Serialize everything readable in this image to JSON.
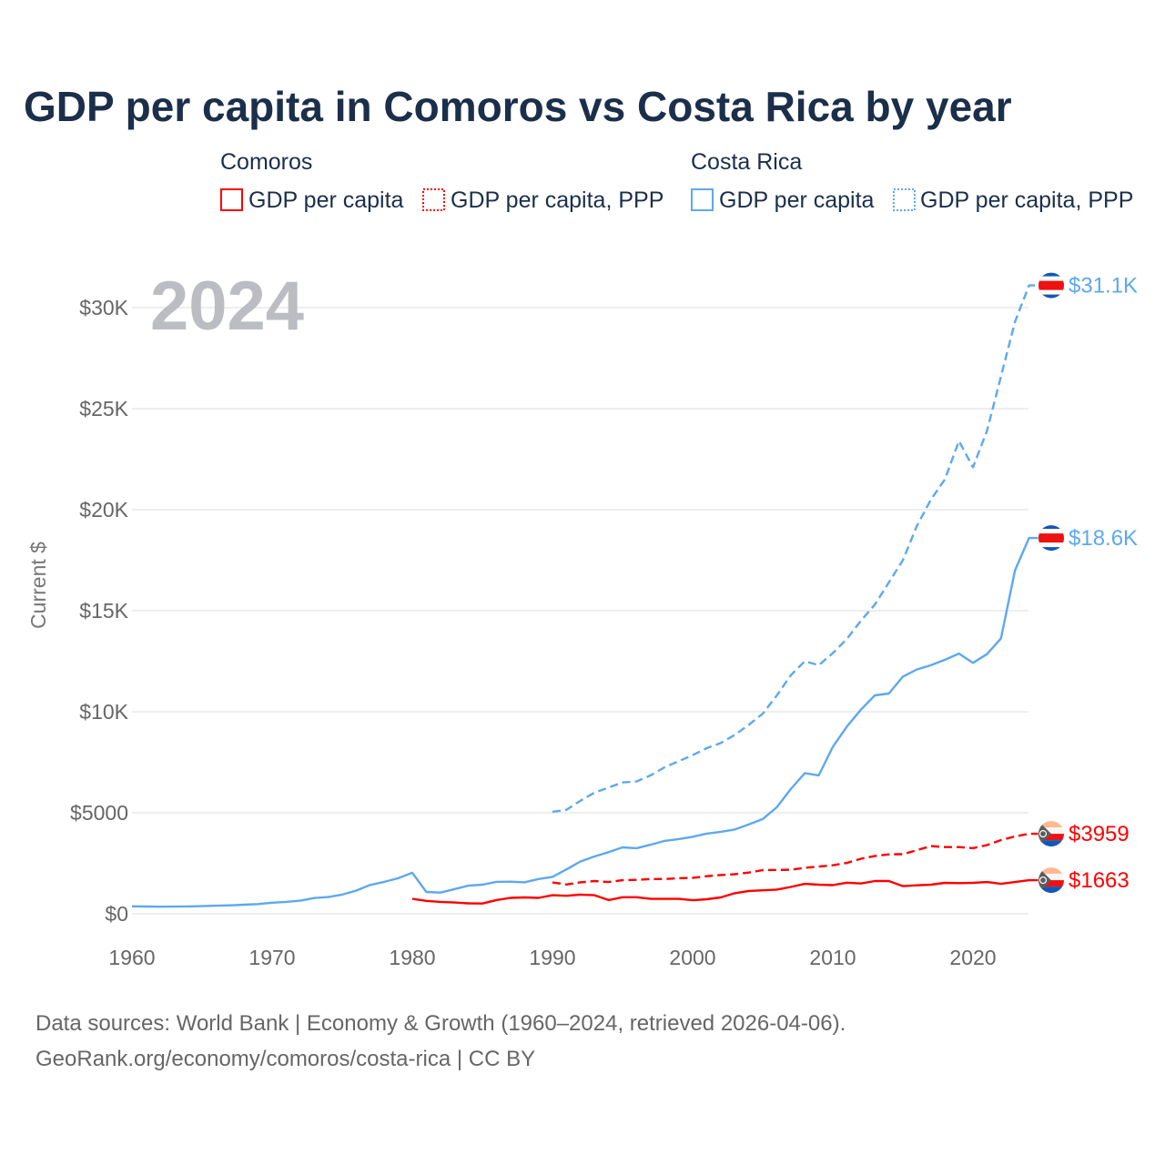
{
  "title": "GDP per capita in Comoros vs Costa Rica by year",
  "legend": {
    "groups": [
      {
        "country": "Comoros",
        "items": [
          "GDP per capita",
          "GDP per capita, PPP"
        ],
        "color": "#ff0000"
      },
      {
        "country": "Costa Rica",
        "items": [
          "GDP per capita",
          "GDP per capita, PPP"
        ],
        "color": "#5ea8ee"
      }
    ]
  },
  "year_overlay": "2024",
  "source_line1": "Data sources: World Bank | Economy & Growth (1960–2024, retrieved 2026-04-06).",
  "source_line2": "GeoRank.org/economy/comoros/costa-rica | CC BY",
  "chart_data": {
    "type": "line",
    "title": "GDP per capita in Comoros vs Costa Rica by year",
    "xlabel": "",
    "ylabel": "Current $",
    "xlim": [
      1960,
      2024
    ],
    "ylim": [
      0,
      32000
    ],
    "x_ticks": [
      1960,
      1970,
      1980,
      1990,
      2000,
      2010,
      2020
    ],
    "x_tick_labels": [
      "1960",
      "1970",
      "1980",
      "1990",
      "2000",
      "2010",
      "2020"
    ],
    "y_ticks": [
      0,
      5000,
      10000,
      15000,
      20000,
      25000,
      30000
    ],
    "y_tick_labels": [
      "$0",
      "$5000",
      "$10K",
      "$15K",
      "$20K",
      "$25K",
      "$30K"
    ],
    "grid": true,
    "legend_position": "top",
    "series": [
      {
        "name": "Costa Rica GDP per capita, PPP",
        "country": "Costa Rica",
        "color": "#5ea8ee",
        "dashed": true,
        "start": 1990,
        "end_label": "$31.1K",
        "values": [
          5050,
          5150,
          5600,
          6000,
          6250,
          6500,
          6550,
          6850,
          7250,
          7550,
          7850,
          8200,
          8450,
          8850,
          9350,
          9900,
          10800,
          11800,
          12500,
          12300,
          12900,
          13600,
          14500,
          15300,
          16400,
          17500,
          19200,
          20500,
          21500,
          23400,
          22100,
          23900,
          26600,
          29300,
          31100
        ]
      },
      {
        "name": "Costa Rica GDP per capita",
        "country": "Costa Rica",
        "color": "#5ea8ee",
        "dashed": false,
        "start": 1960,
        "end_label": "$18.6K",
        "values": [
          370,
          360,
          350,
          355,
          365,
          380,
          400,
          420,
          450,
          480,
          550,
          590,
          650,
          780,
          830,
          950,
          1150,
          1430,
          1580,
          1760,
          2030,
          1080,
          1050,
          1220,
          1390,
          1440,
          1580,
          1590,
          1560,
          1720,
          1830,
          2200,
          2590,
          2840,
          3050,
          3290,
          3250,
          3420,
          3610,
          3700,
          3810,
          3970,
          4060,
          4170,
          4420,
          4690,
          5270,
          6170,
          6960,
          6850,
          8260,
          9260,
          10100,
          10810,
          10900,
          11740,
          12090,
          12300,
          12570,
          12880,
          12420,
          12850,
          13630,
          17000,
          18600
        ]
      },
      {
        "name": "Comoros GDP per capita, PPP",
        "country": "Comoros",
        "color": "#ff0000",
        "dashed": true,
        "start": 1990,
        "end_label": "$3959",
        "values": [
          1550,
          1450,
          1560,
          1620,
          1570,
          1660,
          1680,
          1720,
          1720,
          1760,
          1780,
          1860,
          1920,
          1960,
          2040,
          2160,
          2170,
          2180,
          2280,
          2340,
          2400,
          2520,
          2720,
          2860,
          2940,
          2950,
          3150,
          3350,
          3300,
          3300,
          3250,
          3400,
          3650,
          3830,
          3959
        ]
      },
      {
        "name": "Comoros GDP per capita",
        "country": "Comoros",
        "color": "#ff0000",
        "dashed": false,
        "start": 1980,
        "end_label": "$1663",
        "values": [
          740,
          640,
          590,
          560,
          520,
          510,
          680,
          790,
          810,
          790,
          920,
          890,
          950,
          920,
          680,
          820,
          820,
          740,
          740,
          740,
          670,
          720,
          810,
          1020,
          1130,
          1160,
          1200,
          1330,
          1480,
          1440,
          1420,
          1540,
          1500,
          1620,
          1620,
          1370,
          1410,
          1440,
          1530,
          1520,
          1530,
          1570,
          1480,
          1570,
          1663
        ]
      }
    ]
  }
}
